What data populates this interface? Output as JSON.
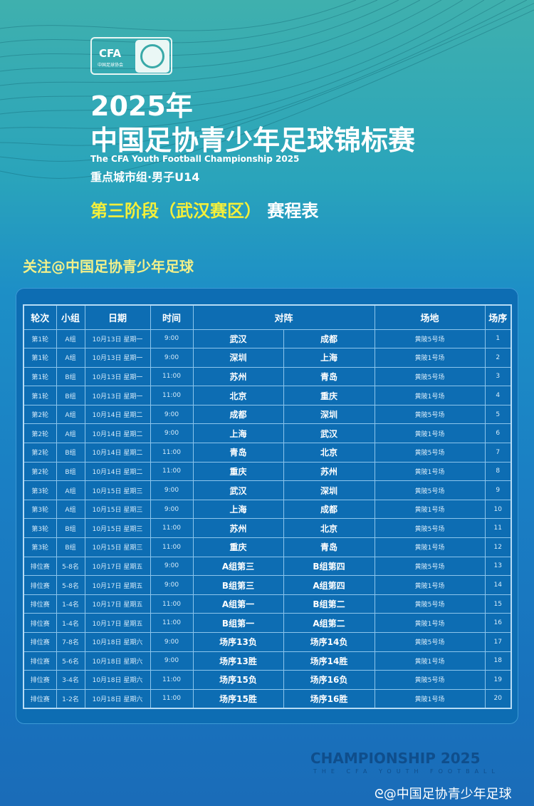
{
  "logo": {
    "text": "CFA",
    "sub": "中国足球协会"
  },
  "title": {
    "year": "2025年",
    "name": "中国足协青少年足球锦标赛",
    "english": "The CFA Youth Football Championship 2025",
    "group": "重点城市组·男子U14",
    "stage_highlight": "第三阶段（武汉赛区）",
    "stage_suffix": "赛程表"
  },
  "follow": "关注@中国足协青少年足球",
  "table": {
    "headers": [
      "轮次",
      "小组",
      "日期",
      "时间",
      "对阵",
      "场地",
      "场序"
    ],
    "rows": [
      [
        "第1轮",
        "A组",
        "10月13日 星期一",
        "9:00",
        "武汉",
        "成都",
        "黄陂5号场",
        "1"
      ],
      [
        "第1轮",
        "A组",
        "10月13日 星期一",
        "9:00",
        "深圳",
        "上海",
        "黄陂1号场",
        "2"
      ],
      [
        "第1轮",
        "B组",
        "10月13日 星期一",
        "11:00",
        "苏州",
        "青岛",
        "黄陂5号场",
        "3"
      ],
      [
        "第1轮",
        "B组",
        "10月13日 星期一",
        "11:00",
        "北京",
        "重庆",
        "黄陂1号场",
        "4"
      ],
      [
        "第2轮",
        "A组",
        "10月14日 星期二",
        "9:00",
        "成都",
        "深圳",
        "黄陂5号场",
        "5"
      ],
      [
        "第2轮",
        "A组",
        "10月14日 星期二",
        "9:00",
        "上海",
        "武汉",
        "黄陂1号场",
        "6"
      ],
      [
        "第2轮",
        "B组",
        "10月14日 星期二",
        "11:00",
        "青岛",
        "北京",
        "黄陂5号场",
        "7"
      ],
      [
        "第2轮",
        "B组",
        "10月14日 星期二",
        "11:00",
        "重庆",
        "苏州",
        "黄陂1号场",
        "8"
      ],
      [
        "第3轮",
        "A组",
        "10月15日 星期三",
        "9:00",
        "武汉",
        "深圳",
        "黄陂5号场",
        "9"
      ],
      [
        "第3轮",
        "A组",
        "10月15日 星期三",
        "9:00",
        "上海",
        "成都",
        "黄陂1号场",
        "10"
      ],
      [
        "第3轮",
        "B组",
        "10月15日 星期三",
        "11:00",
        "苏州",
        "北京",
        "黄陂5号场",
        "11"
      ],
      [
        "第3轮",
        "B组",
        "10月15日 星期三",
        "11:00",
        "重庆",
        "青岛",
        "黄陂1号场",
        "12"
      ],
      [
        "排位赛",
        "5-8名",
        "10月17日 星期五",
        "9:00",
        "A组第三",
        "B组第四",
        "黄陂5号场",
        "13"
      ],
      [
        "排位赛",
        "5-8名",
        "10月17日 星期五",
        "9:00",
        "B组第三",
        "A组第四",
        "黄陂1号场",
        "14"
      ],
      [
        "排位赛",
        "1-4名",
        "10月17日 星期五",
        "11:00",
        "A组第一",
        "B组第二",
        "黄陂5号场",
        "15"
      ],
      [
        "排位赛",
        "1-4名",
        "10月17日 星期五",
        "11:00",
        "B组第一",
        "A组第二",
        "黄陂1号场",
        "16"
      ],
      [
        "排位赛",
        "7-8名",
        "10月18日 星期六",
        "9:00",
        "场序13负",
        "场序14负",
        "黄陂5号场",
        "17"
      ],
      [
        "排位赛",
        "5-6名",
        "10月18日 星期六",
        "9:00",
        "场序13胜",
        "场序14胜",
        "黄陂1号场",
        "18"
      ],
      [
        "排位赛",
        "3-4名",
        "10月18日 星期六",
        "11:00",
        "场序15负",
        "场序16负",
        "黄陂5号场",
        "19"
      ],
      [
        "排位赛",
        "1-2名",
        "10月18日 星期六",
        "11:00",
        "场序15胜",
        "场序16胜",
        "黄陂1号场",
        "20"
      ]
    ]
  },
  "footer": {
    "championship": "CHAMPIONSHIP 2025",
    "championship_sub": "THE CFA YOUTH FOOTBALL",
    "weibo": "@中国足协青少年足球"
  },
  "colors": {
    "highlight": "#f4ef3a",
    "table_bg": "#0d6db3",
    "follow": "#f2f08a"
  }
}
